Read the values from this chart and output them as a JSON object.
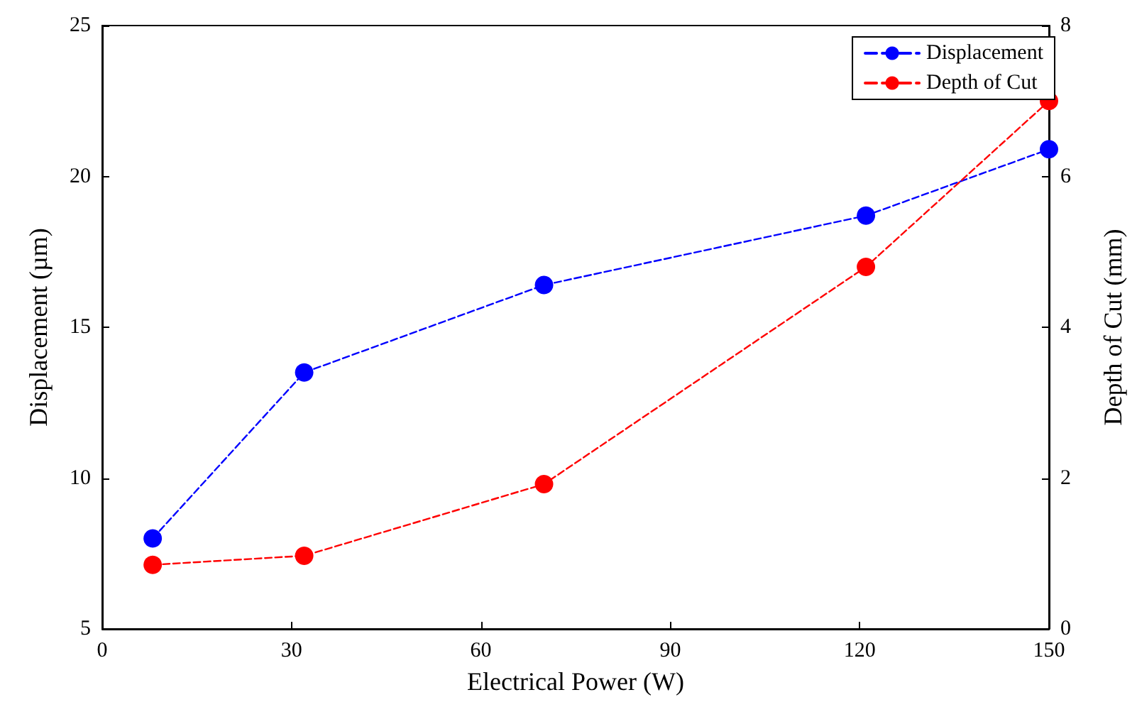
{
  "chart_data": {
    "type": "line",
    "xlabel": "Electrical Power (W)",
    "ylabel": "Displacement (µm)",
    "y2label": "Depth of Cut (mm)",
    "x": [
      8,
      32,
      70,
      121,
      150
    ],
    "series": [
      {
        "name": "Displacement",
        "color": "#0000ff",
        "values": [
          8.0,
          13.5,
          16.4,
          18.7,
          20.9
        ]
      },
      {
        "name": "Depth of Cut",
        "color": "#ff0000",
        "values": [
          0.85,
          0.97,
          1.92,
          4.8,
          7.0
        ],
        "axis": "y2"
      }
    ],
    "xlim": [
      0,
      150
    ],
    "xticks": [
      0,
      30,
      60,
      90,
      120,
      150
    ],
    "ylim": [
      5,
      25
    ],
    "yticks": [
      5,
      10,
      15,
      20,
      25
    ],
    "y2lim": [
      0,
      8
    ],
    "y2ticks": [
      0,
      2,
      4,
      6,
      8
    ],
    "grid": false,
    "legend": "top right",
    "marker": "circle",
    "line_style": "dashed"
  }
}
